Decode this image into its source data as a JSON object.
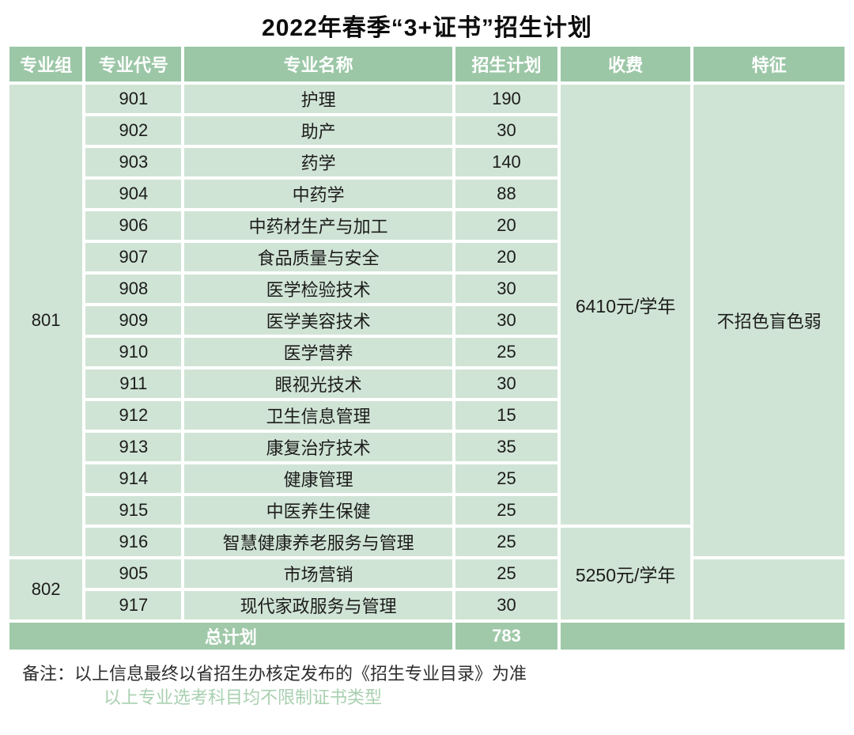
{
  "title": "2022年春季“3+证书”招生计划",
  "table": {
    "headers": [
      "专业组",
      "专业代号",
      "专业名称",
      "招生计划",
      "收费",
      "特征"
    ],
    "groups": {
      "g801": "801",
      "g802": "802"
    },
    "fees": {
      "fee6410": "6410元/学年",
      "fee5250": "5250元/学年"
    },
    "features": {
      "group801": "不招色盲色弱",
      "group802": ""
    },
    "rows": [
      {
        "code": "901",
        "name": "护理",
        "plan": "190"
      },
      {
        "code": "902",
        "name": "助产",
        "plan": "30"
      },
      {
        "code": "903",
        "name": "药学",
        "plan": "140"
      },
      {
        "code": "904",
        "name": "中药学",
        "plan": "88"
      },
      {
        "code": "906",
        "name": "中药材生产与加工",
        "plan": "20"
      },
      {
        "code": "907",
        "name": "食品质量与安全",
        "plan": "20"
      },
      {
        "code": "908",
        "name": "医学检验技术",
        "plan": "30"
      },
      {
        "code": "909",
        "name": "医学美容技术",
        "plan": "30"
      },
      {
        "code": "910",
        "name": "医学营养",
        "plan": "25"
      },
      {
        "code": "911",
        "name": "眼视光技术",
        "plan": "30"
      },
      {
        "code": "912",
        "name": "卫生信息管理",
        "plan": "15"
      },
      {
        "code": "913",
        "name": "康复治疗技术",
        "plan": "35"
      },
      {
        "code": "914",
        "name": "健康管理",
        "plan": "25"
      },
      {
        "code": "915",
        "name": "中医养生保健",
        "plan": "25"
      },
      {
        "code": "916",
        "name": "智慧健康养老服务与管理",
        "plan": "25"
      },
      {
        "code": "905",
        "name": "市场营销",
        "plan": "25"
      },
      {
        "code": "917",
        "name": "现代家政服务与管理",
        "plan": "30"
      }
    ],
    "total": {
      "label": "总计划",
      "plan": "783",
      "empty": ""
    }
  },
  "notes": {
    "line1": "备注：以上信息最终以省招生办核定发布的《招生专业目录》为准",
    "line2": "以上专业选考科目均不限制证书类型"
  },
  "colors": {
    "header_green": "#9cc7a7",
    "cell_green": "#d0e4d5",
    "total_green": "#9fc9a8",
    "note_green": "#a9d0b0"
  }
}
